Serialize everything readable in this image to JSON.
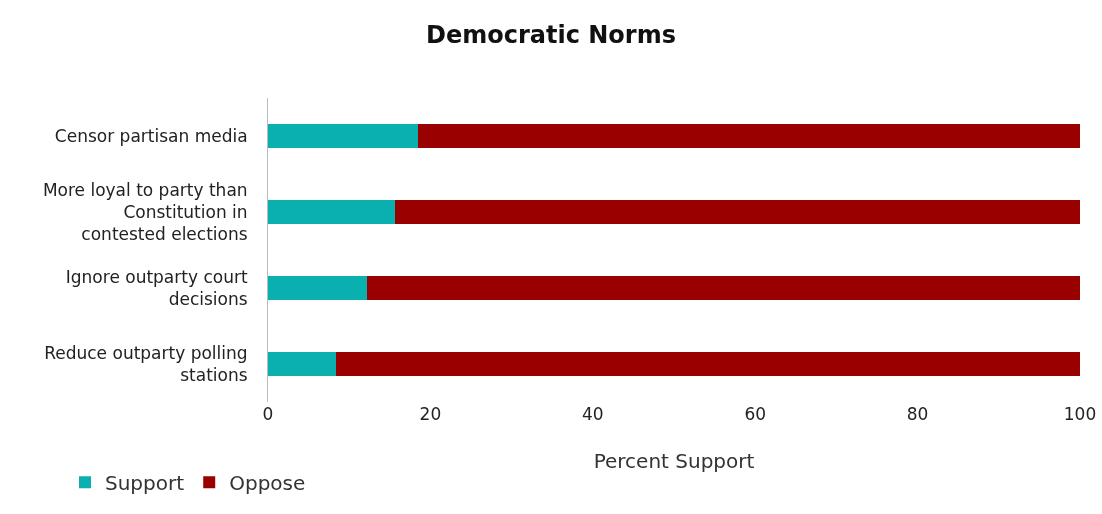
{
  "chart_data": {
    "type": "bar",
    "orientation": "horizontal",
    "stacked": true,
    "title": "Democratic Norms",
    "xlabel": "Percent Support",
    "categories": [
      "Censor partisan media",
      "More loyal to party than Constitution in contested elections",
      "Ignore outparty court decisions",
      "Reduce outparty polling stations"
    ],
    "series": [
      {
        "name": "Support",
        "color": "#0aafaf",
        "values": [
          18.5,
          15.6,
          12.2,
          8.4
        ]
      },
      {
        "name": "Oppose",
        "color": "#990000",
        "values": [
          81.5,
          84.4,
          87.8,
          91.6
        ]
      }
    ],
    "xlim": [
      0,
      100
    ],
    "xticks": [
      0,
      20,
      40,
      60,
      80,
      100
    ],
    "grid": false,
    "legend": "bottom left"
  }
}
